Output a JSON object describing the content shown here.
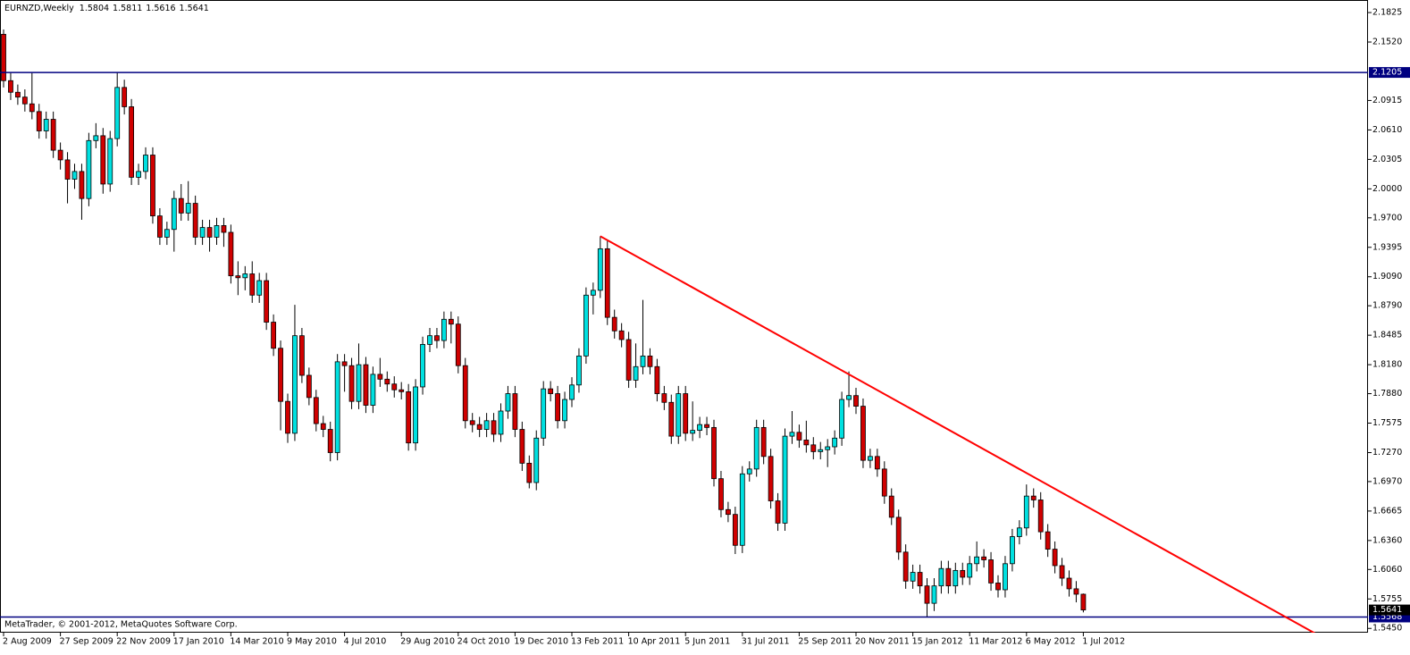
{
  "chart_data": {
    "type": "candlestick",
    "symbol": "EURNZD,Weekly",
    "footer": "MetaTrader, © 2001-2012, MetaQuotes Software Corp.",
    "up_color": "#00e0e0",
    "down_color": "#d00000",
    "outline_color": "#000000",
    "ylim": [
      1.5406,
      2.1955
    ],
    "yticks": [
      2.1825,
      {
        "value": 2.152,
        "label": "2.1520"
      },
      2.0915,
      {
        "value": 2.061,
        "label": "2.0610"
      },
      2.0305,
      {
        "value": 2,
        "label": "2.0000"
      },
      {
        "value": 1.97,
        "label": "1.9700"
      },
      1.9395,
      {
        "value": 1.909,
        "label": "1.9090"
      },
      {
        "value": 1.879,
        "label": "1.8790"
      },
      1.8485,
      {
        "value": 1.818,
        "label": "1.8180"
      },
      {
        "value": 1.788,
        "label": "1.7880"
      },
      1.7575,
      {
        "value": 1.727,
        "label": "1.7270"
      },
      {
        "value": 1.697,
        "label": "1.6970"
      },
      1.6665,
      {
        "value": 1.636,
        "label": "1.6360"
      },
      {
        "value": 1.606,
        "label": "1.6060"
      },
      1.5755,
      {
        "value": 1.545,
        "label": "1.5450"
      }
    ],
    "hlines": [
      {
        "value": 2.1205,
        "color": "#000080"
      },
      {
        "value": 1.5568,
        "color": "#000080"
      }
    ],
    "trendline": {
      "x": [
        84,
        189
      ],
      "y": [
        1.951,
        1.522
      ],
      "color": "#ff0000"
    },
    "categories": [
      "2 Aug 2009",
      null,
      null,
      null,
      null,
      null,
      null,
      null,
      "27 Sep 2009",
      null,
      null,
      null,
      null,
      null,
      null,
      null,
      "22 Nov 2009",
      null,
      null,
      null,
      null,
      null,
      null,
      null,
      "17 Jan 2010",
      null,
      null,
      null,
      null,
      null,
      null,
      null,
      "14 Mar 2010",
      null,
      null,
      null,
      null,
      null,
      null,
      null,
      "9 May 2010",
      null,
      null,
      null,
      null,
      null,
      null,
      null,
      "4 Jul 2010",
      null,
      null,
      null,
      null,
      null,
      null,
      null,
      "29 Aug 2010",
      null,
      null,
      null,
      null,
      null,
      null,
      null,
      "24 Oct 2010",
      null,
      null,
      null,
      null,
      null,
      null,
      null,
      "19 Dec 2010",
      null,
      null,
      null,
      null,
      null,
      null,
      null,
      "13 Feb 2011",
      null,
      null,
      null,
      null,
      null,
      null,
      null,
      "10 Apr 2011",
      null,
      null,
      null,
      null,
      null,
      null,
      null,
      "5 Jun 2011",
      null,
      null,
      null,
      null,
      null,
      null,
      null,
      "31 Jul 2011",
      null,
      null,
      null,
      null,
      null,
      null,
      null,
      "25 Sep 2011",
      null,
      null,
      null,
      null,
      null,
      null,
      null,
      "20 Nov 2011",
      null,
      null,
      null,
      null,
      null,
      null,
      null,
      "15 Jan 2012",
      null,
      null,
      null,
      null,
      null,
      null,
      null,
      "11 Mar 2012",
      null,
      null,
      null,
      null,
      null,
      null,
      null,
      "6 May 2012",
      null,
      null,
      null,
      null,
      null,
      null,
      null,
      "1 Jul 2012"
    ],
    "open": [
      2.16,
      2.112,
      2.1,
      2.095,
      2.088,
      2.08,
      2.06,
      2.072,
      2.04,
      2.03,
      2.01,
      2.018,
      1.99,
      2.05,
      2.055,
      2.005,
      2.052,
      2.105,
      2.085,
      2.012,
      2.018,
      2.035,
      1.972,
      1.95,
      1.958,
      1.99,
      1.975,
      1.985,
      1.95,
      1.96,
      1.95,
      1.962,
      1.955,
      1.91,
      1.908,
      1.912,
      1.89,
      1.905,
      1.862,
      1.835,
      1.78,
      1.747,
      1.848,
      1.807,
      1.784,
      1.757,
      1.751,
      1.727,
      1.821,
      1.817,
      1.78,
      1.818,
      1.776,
      1.808,
      1.803,
      1.798,
      1.792,
      1.79,
      1.737,
      1.795,
      1.839,
      1.848,
      1.843,
      1.865,
      1.86,
      1.817,
      1.76,
      1.756,
      1.751,
      1.76,
      1.746,
      1.77,
      1.788,
      1.751,
      1.716,
      1.696,
      1.742,
      1.793,
      1.788,
      1.76,
      1.782,
      1.797,
      1.827,
      1.89,
      1.895,
      1.938,
      1.867,
      1.853,
      1.844,
      1.802,
      1.816,
      1.827,
      1.816,
      1.788,
      1.779,
      1.744,
      1.788,
      1.747,
      1.75,
      1.756,
      1.753,
      1.7,
      1.668,
      1.663,
      1.631,
      1.705,
      1.71,
      1.753,
      1.723,
      1.677,
      1.654,
      1.744,
      1.748,
      1.74,
      1.735,
      1.728,
      1.73,
      1.733,
      1.742,
      1.782,
      1.786,
      1.775,
      1.719,
      1.723,
      1.71,
      1.682,
      1.66,
      1.624,
      1.594,
      1.603,
      1.589,
      1.571,
      1.589,
      1.607,
      1.589,
      1.605,
      1.598,
      1.612,
      1.619,
      1.616,
      1.592,
      1.585,
      1.612,
      1.64,
      1.649,
      1.682,
      1.678,
      1.645,
      1.627,
      1.61,
      1.597,
      1.586,
      1.5804
    ],
    "high": [
      2.165,
      2.12,
      2.108,
      2.103,
      2.12,
      2.088,
      2.08,
      2.08,
      2.048,
      2.038,
      2.026,
      2.026,
      2.058,
      2.068,
      2.063,
      2.06,
      2.121,
      2.113,
      2.093,
      2.026,
      2.043,
      2.043,
      1.98,
      1.966,
      1.998,
      2.005,
      2.008,
      1.993,
      1.968,
      1.968,
      1.97,
      1.97,
      1.963,
      1.925,
      1.92,
      1.925,
      1.913,
      1.913,
      1.87,
      1.843,
      1.788,
      1.88,
      1.856,
      1.815,
      1.792,
      1.765,
      1.759,
      1.829,
      1.829,
      1.825,
      1.84,
      1.826,
      1.816,
      1.825,
      1.811,
      1.806,
      1.8,
      1.798,
      1.803,
      1.847,
      1.856,
      1.856,
      1.873,
      1.873,
      1.868,
      1.825,
      1.768,
      1.764,
      1.768,
      1.768,
      1.778,
      1.796,
      1.796,
      1.759,
      1.724,
      1.75,
      1.801,
      1.801,
      1.796,
      1.79,
      1.805,
      1.835,
      1.898,
      1.903,
      1.951,
      1.946,
      1.875,
      1.861,
      1.852,
      1.84,
      1.885,
      1.835,
      1.824,
      1.796,
      1.787,
      1.796,
      1.796,
      1.78,
      1.764,
      1.764,
      1.761,
      1.708,
      1.676,
      1.671,
      1.713,
      1.718,
      1.761,
      1.761,
      1.731,
      1.685,
      1.752,
      1.77,
      1.756,
      1.76,
      1.743,
      1.738,
      1.741,
      1.75,
      1.79,
      1.811,
      1.794,
      1.783,
      1.731,
      1.731,
      1.718,
      1.69,
      1.668,
      1.632,
      1.611,
      1.611,
      1.597,
      1.597,
      1.615,
      1.615,
      1.613,
      1.613,
      1.62,
      1.635,
      1.627,
      1.624,
      1.6,
      1.62,
      1.648,
      1.657,
      1.694,
      1.69,
      1.686,
      1.653,
      1.635,
      1.618,
      1.605,
      1.594,
      1.5811
    ],
    "low": [
      2.105,
      2.092,
      2.087,
      2.08,
      2.072,
      2.052,
      2.052,
      2.032,
      2.02,
      1.985,
      2.0,
      1.968,
      1.982,
      2.042,
      1.995,
      1.997,
      2.044,
      2.077,
      2.004,
      2.004,
      2.01,
      1.964,
      1.942,
      1.942,
      1.935,
      1.967,
      1.967,
      1.942,
      1.942,
      1.935,
      1.942,
      1.94,
      1.902,
      1.89,
      1.895,
      1.882,
      1.882,
      1.854,
      1.827,
      1.75,
      1.737,
      1.739,
      1.799,
      1.776,
      1.749,
      1.743,
      1.718,
      1.719,
      1.79,
      1.772,
      1.772,
      1.768,
      1.768,
      1.795,
      1.79,
      1.784,
      1.782,
      1.729,
      1.729,
      1.787,
      1.831,
      1.835,
      1.835,
      1.84,
      1.809,
      1.752,
      1.748,
      1.743,
      1.743,
      1.738,
      1.738,
      1.762,
      1.743,
      1.708,
      1.69,
      1.688,
      1.734,
      1.78,
      1.752,
      1.752,
      1.774,
      1.789,
      1.819,
      1.87,
      1.887,
      1.859,
      1.845,
      1.836,
      1.794,
      1.794,
      1.808,
      1.808,
      1.78,
      1.771,
      1.736,
      1.736,
      1.739,
      1.739,
      1.742,
      1.745,
      1.692,
      1.66,
      1.655,
      1.622,
      1.623,
      1.697,
      1.702,
      1.715,
      1.669,
      1.646,
      1.646,
      1.736,
      1.732,
      1.727,
      1.72,
      1.72,
      1.712,
      1.725,
      1.734,
      1.774,
      1.767,
      1.711,
      1.711,
      1.702,
      1.674,
      1.652,
      1.616,
      1.586,
      1.586,
      1.581,
      1.557,
      1.563,
      1.581,
      1.581,
      1.581,
      1.59,
      1.59,
      1.604,
      1.608,
      1.584,
      1.577,
      1.577,
      1.604,
      1.632,
      1.641,
      1.67,
      1.637,
      1.619,
      1.602,
      1.589,
      1.578,
      1.572,
      1.5616
    ],
    "close": [
      2.112,
      2.1,
      2.095,
      2.088,
      2.08,
      2.06,
      2.072,
      2.04,
      2.03,
      2.01,
      2.018,
      1.99,
      2.05,
      2.055,
      2.005,
      2.052,
      2.105,
      2.085,
      2.012,
      2.018,
      2.035,
      1.972,
      1.95,
      1.958,
      1.99,
      1.975,
      1.985,
      1.95,
      1.96,
      1.95,
      1.962,
      1.955,
      1.91,
      1.908,
      1.912,
      1.89,
      1.905,
      1.862,
      1.835,
      1.78,
      1.747,
      1.848,
      1.807,
      1.784,
      1.757,
      1.751,
      1.727,
      1.821,
      1.817,
      1.78,
      1.818,
      1.776,
      1.808,
      1.803,
      1.798,
      1.792,
      1.79,
      1.737,
      1.795,
      1.839,
      1.848,
      1.843,
      1.865,
      1.86,
      1.817,
      1.76,
      1.756,
      1.751,
      1.76,
      1.746,
      1.77,
      1.788,
      1.751,
      1.716,
      1.696,
      1.742,
      1.793,
      1.788,
      1.76,
      1.782,
      1.797,
      1.827,
      1.89,
      1.895,
      1.938,
      1.867,
      1.853,
      1.844,
      1.802,
      1.816,
      1.827,
      1.816,
      1.788,
      1.779,
      1.744,
      1.788,
      1.747,
      1.75,
      1.756,
      1.753,
      1.7,
      1.668,
      1.663,
      1.631,
      1.705,
      1.71,
      1.753,
      1.723,
      1.677,
      1.654,
      1.744,
      1.748,
      1.74,
      1.735,
      1.728,
      1.73,
      1.733,
      1.742,
      1.782,
      1.786,
      1.775,
      1.719,
      1.723,
      1.71,
      1.682,
      1.66,
      1.624,
      1.594,
      1.603,
      1.589,
      1.571,
      1.589,
      1.607,
      1.589,
      1.605,
      1.598,
      1.612,
      1.619,
      1.616,
      1.592,
      1.585,
      1.612,
      1.64,
      1.649,
      1.682,
      1.678,
      1.645,
      1.627,
      1.61,
      1.597,
      1.586,
      1.5804,
      1.5641
    ]
  }
}
